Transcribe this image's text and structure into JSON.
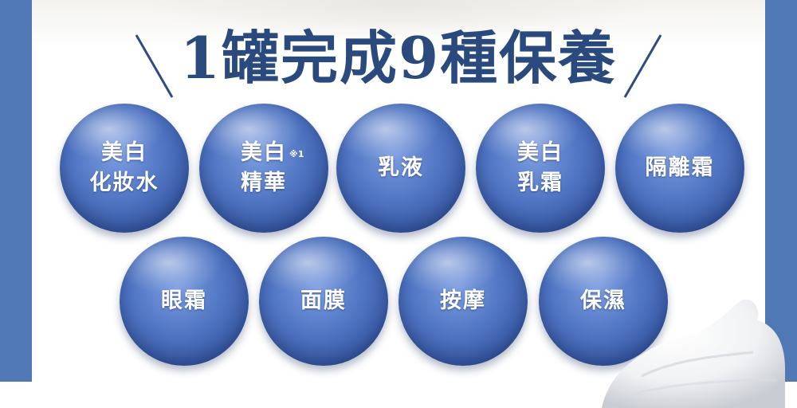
{
  "headline": {
    "title": "1罐完成9種保養"
  },
  "items": [
    {
      "lines": [
        "美白",
        "化妝水"
      ]
    },
    {
      "lines": [
        "美白",
        "精華"
      ],
      "note": "※1"
    },
    {
      "lines": [
        "乳液"
      ]
    },
    {
      "lines": [
        "美白",
        "乳霜"
      ]
    },
    {
      "lines": [
        "隔離霜"
      ]
    },
    {
      "lines": [
        "眼霜"
      ]
    },
    {
      "lines": [
        "面膜"
      ]
    },
    {
      "lines": [
        "按摩"
      ]
    },
    {
      "lines": [
        "保濕"
      ]
    }
  ],
  "colors": {
    "frame": "#4f78b4",
    "title": "#2a4a7e",
    "ball": "#4f74c2"
  }
}
